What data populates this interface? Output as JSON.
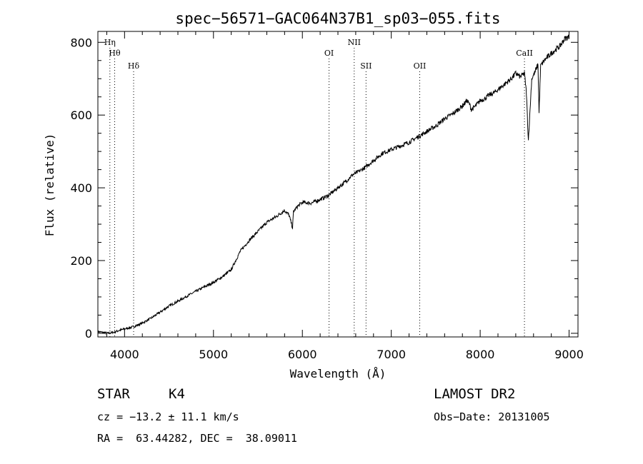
{
  "chart_data": {
    "type": "line",
    "title": "spec−56571−GAC064N37B1_sp03−055.fits",
    "xlabel": "Wavelength (Å)",
    "ylabel": "Flux (relative)",
    "xlim": [
      3700,
      9100
    ],
    "ylim": [
      -10,
      830
    ],
    "x_ticks": [
      4000,
      5000,
      6000,
      7000,
      8000,
      9000
    ],
    "y_ticks": [
      0,
      200,
      400,
      600,
      800
    ],
    "grid": false,
    "legend": "none",
    "line_color": "#000000",
    "series": [
      {
        "x": [
          3700,
          3760,
          3820,
          3880,
          3940,
          4000,
          4100,
          4200,
          4300,
          4400,
          4500,
          4600,
          4700,
          4800,
          4900,
          5000,
          5100,
          5200,
          5250,
          5300,
          5400,
          5500,
          5600,
          5700,
          5800,
          5850,
          5890,
          5900,
          5950,
          6000,
          6100,
          6200,
          6300,
          6400,
          6500,
          6560,
          6600,
          6700,
          6800,
          6900,
          7000,
          7100,
          7200,
          7300,
          7400,
          7500,
          7600,
          7700,
          7800,
          7850,
          7880,
          7900,
          7950,
          8000,
          8050,
          8100,
          8150,
          8200,
          8300,
          8350,
          8400,
          8450,
          8498,
          8520,
          8542,
          8580,
          8620,
          8650,
          8662,
          8680,
          8720,
          8800,
          8900,
          8950,
          9000
        ],
        "y": [
          5,
          2,
          0,
          3,
          8,
          12,
          18,
          28,
          42,
          58,
          75,
          88,
          102,
          115,
          128,
          140,
          155,
          175,
          200,
          225,
          255,
          280,
          305,
          320,
          338,
          325,
          290,
          335,
          350,
          360,
          358,
          368,
          380,
          400,
          420,
          435,
          440,
          455,
          475,
          495,
          505,
          515,
          525,
          540,
          555,
          570,
          590,
          605,
          625,
          640,
          630,
          615,
          625,
          640,
          645,
          655,
          660,
          670,
          690,
          700,
          715,
          705,
          715,
          660,
          530,
          700,
          720,
          740,
          605,
          735,
          750,
          770,
          790,
          810,
          815
        ]
      }
    ],
    "line_markers": [
      {
        "label": "Hη",
        "x": 3835
      },
      {
        "label": "Hθ",
        "x": 3889
      },
      {
        "label": "Hδ",
        "x": 4102
      },
      {
        "label": "OI",
        "x": 6300
      },
      {
        "label": "NII",
        "x": 6583
      },
      {
        "label": "SII",
        "x": 6716
      },
      {
        "label": "OII",
        "x": 7320
      },
      {
        "label": "CaII",
        "x": 8498
      }
    ]
  },
  "info": {
    "object_class": "STAR",
    "subclass": "K4",
    "survey": "LAMOST DR2",
    "cz_line": "cz = −13.2 ± 11.1 km/s",
    "obs_date_line": "Obs−Date: 20131005",
    "radec_line": "RA =  63.44282, DEC =  38.09011"
  }
}
